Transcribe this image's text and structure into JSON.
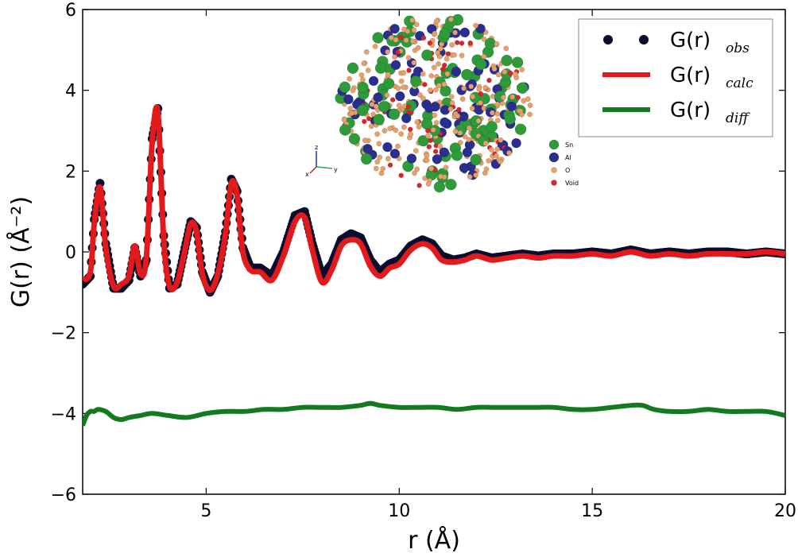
{
  "chart_data": {
    "type": "line",
    "xlabel": "r (Å)",
    "ylabel": "G(r) (Å⁻²)",
    "xlim": [
      1.8,
      20
    ],
    "ylim": [
      -6,
      6
    ],
    "xticks": [
      5,
      10,
      15,
      20
    ],
    "yticks": [
      -6,
      -4,
      -2,
      0,
      2,
      4,
      6
    ],
    "xtick_labels": [
      "5",
      "10",
      "15",
      "20"
    ],
    "ytick_labels": [
      "−6",
      "−4",
      "−2",
      "0",
      "2",
      "4",
      "6"
    ],
    "grid": false,
    "legend_position": "top-right",
    "series": [
      {
        "name": "G(r) obs",
        "legend_main": "G(r)",
        "legend_sub": "obs",
        "style": "markers",
        "color": "#0a0d2e",
        "x": [
          1.8,
          2.0,
          2.1,
          2.25,
          2.4,
          2.6,
          2.8,
          3.0,
          3.15,
          3.3,
          3.45,
          3.6,
          3.75,
          3.9,
          4.05,
          4.25,
          4.45,
          4.6,
          4.75,
          4.9,
          5.1,
          5.3,
          5.5,
          5.65,
          5.8,
          5.95,
          6.15,
          6.4,
          6.7,
          7.0,
          7.3,
          7.55,
          7.75,
          8.0,
          8.25,
          8.5,
          8.75,
          9.0,
          9.25,
          9.5,
          9.75,
          10.0,
          10.3,
          10.6,
          10.85,
          11.1,
          11.4,
          11.7,
          12.0,
          12.4,
          12.8,
          13.2,
          13.6,
          14.0,
          14.5,
          15.0,
          15.5,
          16.0,
          16.5,
          17.0,
          17.5,
          18.0,
          18.5,
          19.0,
          19.5,
          20.0
        ],
        "y": [
          -0.8,
          -0.6,
          0.8,
          1.7,
          0.2,
          -0.9,
          -0.9,
          -0.7,
          0.1,
          -0.6,
          -0.2,
          2.8,
          3.55,
          0.4,
          -0.9,
          -0.8,
          0.1,
          0.75,
          0.6,
          -0.5,
          -1.0,
          -0.6,
          0.5,
          1.8,
          1.5,
          0.1,
          -0.4,
          -0.4,
          -0.6,
          0.0,
          0.9,
          1.0,
          0.2,
          -0.6,
          -0.3,
          0.3,
          0.45,
          0.35,
          -0.2,
          -0.5,
          -0.3,
          -0.2,
          0.15,
          0.3,
          0.2,
          -0.1,
          -0.2,
          -0.15,
          -0.05,
          -0.15,
          -0.1,
          -0.05,
          -0.1,
          -0.05,
          -0.05,
          0.0,
          -0.05,
          0.05,
          -0.05,
          0.0,
          -0.05,
          0.0,
          0.0,
          -0.05,
          0.0,
          -0.05
        ]
      },
      {
        "name": "G(r) calc",
        "legend_main": "G(r)",
        "legend_sub": "calc",
        "style": "line",
        "color": "#e31a1c",
        "x": [
          1.8,
          2.0,
          2.1,
          2.25,
          2.4,
          2.6,
          2.8,
          3.0,
          3.15,
          3.3,
          3.45,
          3.6,
          3.75,
          3.9,
          4.05,
          4.25,
          4.45,
          4.6,
          4.75,
          4.9,
          5.1,
          5.3,
          5.5,
          5.65,
          5.8,
          5.95,
          6.15,
          6.4,
          6.7,
          7.0,
          7.3,
          7.55,
          7.75,
          8.0,
          8.25,
          8.5,
          8.75,
          9.0,
          9.25,
          9.5,
          9.75,
          10.0,
          10.3,
          10.6,
          10.85,
          11.1,
          11.4,
          11.7,
          12.0,
          12.4,
          12.8,
          13.2,
          13.6,
          14.0,
          14.5,
          15.0,
          15.5,
          16.0,
          16.5,
          17.0,
          17.5,
          18.0,
          18.5,
          19.0,
          19.5,
          20.0
        ],
        "y": [
          -0.7,
          -0.5,
          0.7,
          1.6,
          0.1,
          -0.85,
          -0.8,
          -0.6,
          0.15,
          -0.55,
          -0.15,
          2.7,
          3.45,
          0.3,
          -0.85,
          -0.75,
          0.05,
          0.7,
          0.5,
          -0.55,
          -0.95,
          -0.55,
          0.45,
          1.7,
          1.4,
          0.0,
          -0.45,
          -0.5,
          -0.7,
          -0.1,
          0.75,
          0.85,
          0.05,
          -0.75,
          -0.45,
          0.15,
          0.3,
          0.2,
          -0.35,
          -0.6,
          -0.4,
          -0.3,
          0.05,
          0.2,
          0.1,
          -0.2,
          -0.25,
          -0.2,
          -0.1,
          -0.2,
          -0.15,
          -0.1,
          -0.15,
          -0.1,
          -0.1,
          -0.05,
          -0.1,
          0.0,
          -0.1,
          -0.05,
          -0.1,
          -0.05,
          -0.05,
          -0.05,
          0.0,
          -0.05
        ]
      },
      {
        "name": "G(r) diff",
        "legend_main": "G(r)",
        "legend_sub": "diff",
        "style": "line",
        "color": "#137a1f",
        "x": [
          1.8,
          1.9,
          2.0,
          2.1,
          2.2,
          2.4,
          2.6,
          2.8,
          3.0,
          3.3,
          3.6,
          4.0,
          4.5,
          5.0,
          5.5,
          6.0,
          6.5,
          7.0,
          7.5,
          8.0,
          8.5,
          9.0,
          9.25,
          9.5,
          10.0,
          10.5,
          11.0,
          11.5,
          12.0,
          12.5,
          13.0,
          13.5,
          14.0,
          14.5,
          15.0,
          15.5,
          16.0,
          16.3,
          16.6,
          17.0,
          17.5,
          18.0,
          18.5,
          19.0,
          19.5,
          20.0
        ],
        "y": [
          -4.3,
          -4.05,
          -3.95,
          -3.95,
          -3.9,
          -3.95,
          -4.1,
          -4.15,
          -4.1,
          -4.05,
          -4.0,
          -4.05,
          -4.1,
          -4.0,
          -3.95,
          -3.95,
          -3.9,
          -3.9,
          -3.85,
          -3.85,
          -3.85,
          -3.8,
          -3.75,
          -3.8,
          -3.85,
          -3.85,
          -3.85,
          -3.9,
          -3.85,
          -3.85,
          -3.85,
          -3.85,
          -3.85,
          -3.9,
          -3.9,
          -3.85,
          -3.8,
          -3.8,
          -3.9,
          -3.95,
          -3.95,
          -3.9,
          -3.95,
          -3.95,
          -3.95,
          -4.05
        ]
      }
    ],
    "inset": {
      "axes_labels": [
        "z",
        "x",
        "y"
      ],
      "legend": [
        {
          "label": "Sn",
          "color": "#2e9a3a"
        },
        {
          "label": "Al",
          "color": "#2a2f8f"
        },
        {
          "label": "O",
          "color": "#e8a06a"
        },
        {
          "label": "Void",
          "color": "#d9252a"
        }
      ]
    }
  }
}
